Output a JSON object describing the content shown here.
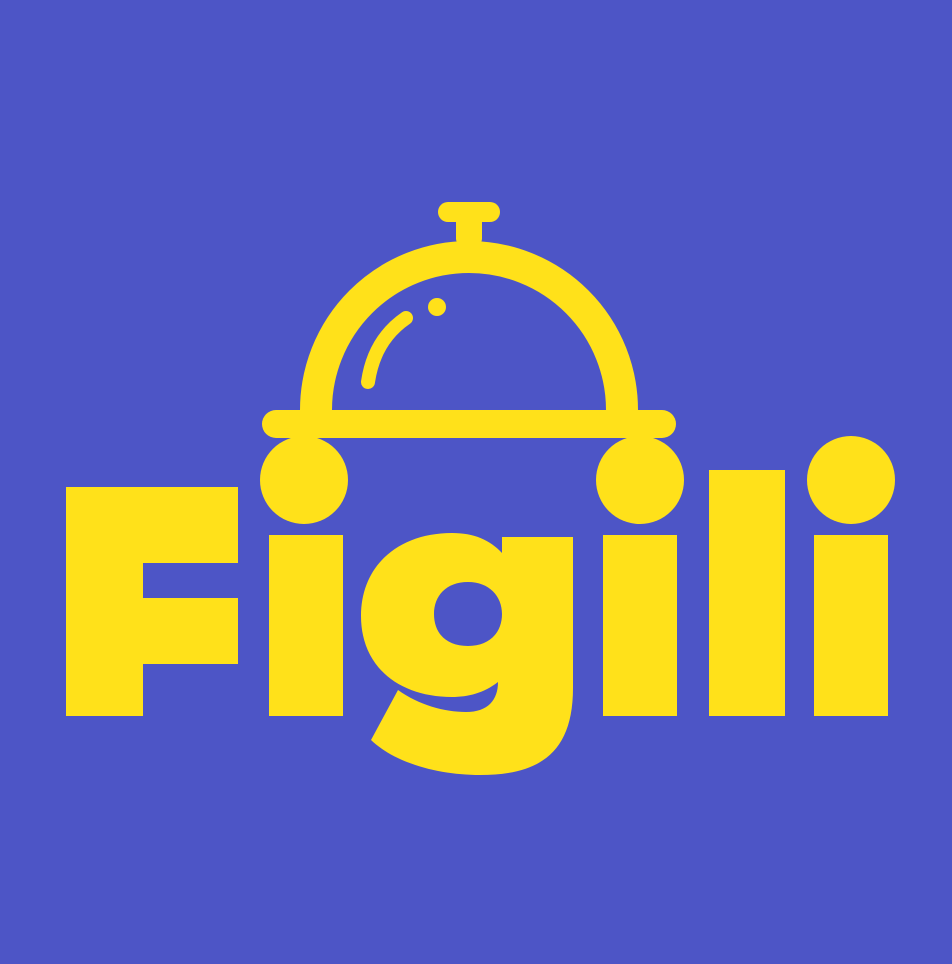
{
  "logo": {
    "wordmark": "Figili",
    "icon": "cloche-icon"
  },
  "colors": {
    "background": "#4d55c6",
    "brand_yellow": "#ffe11a"
  }
}
